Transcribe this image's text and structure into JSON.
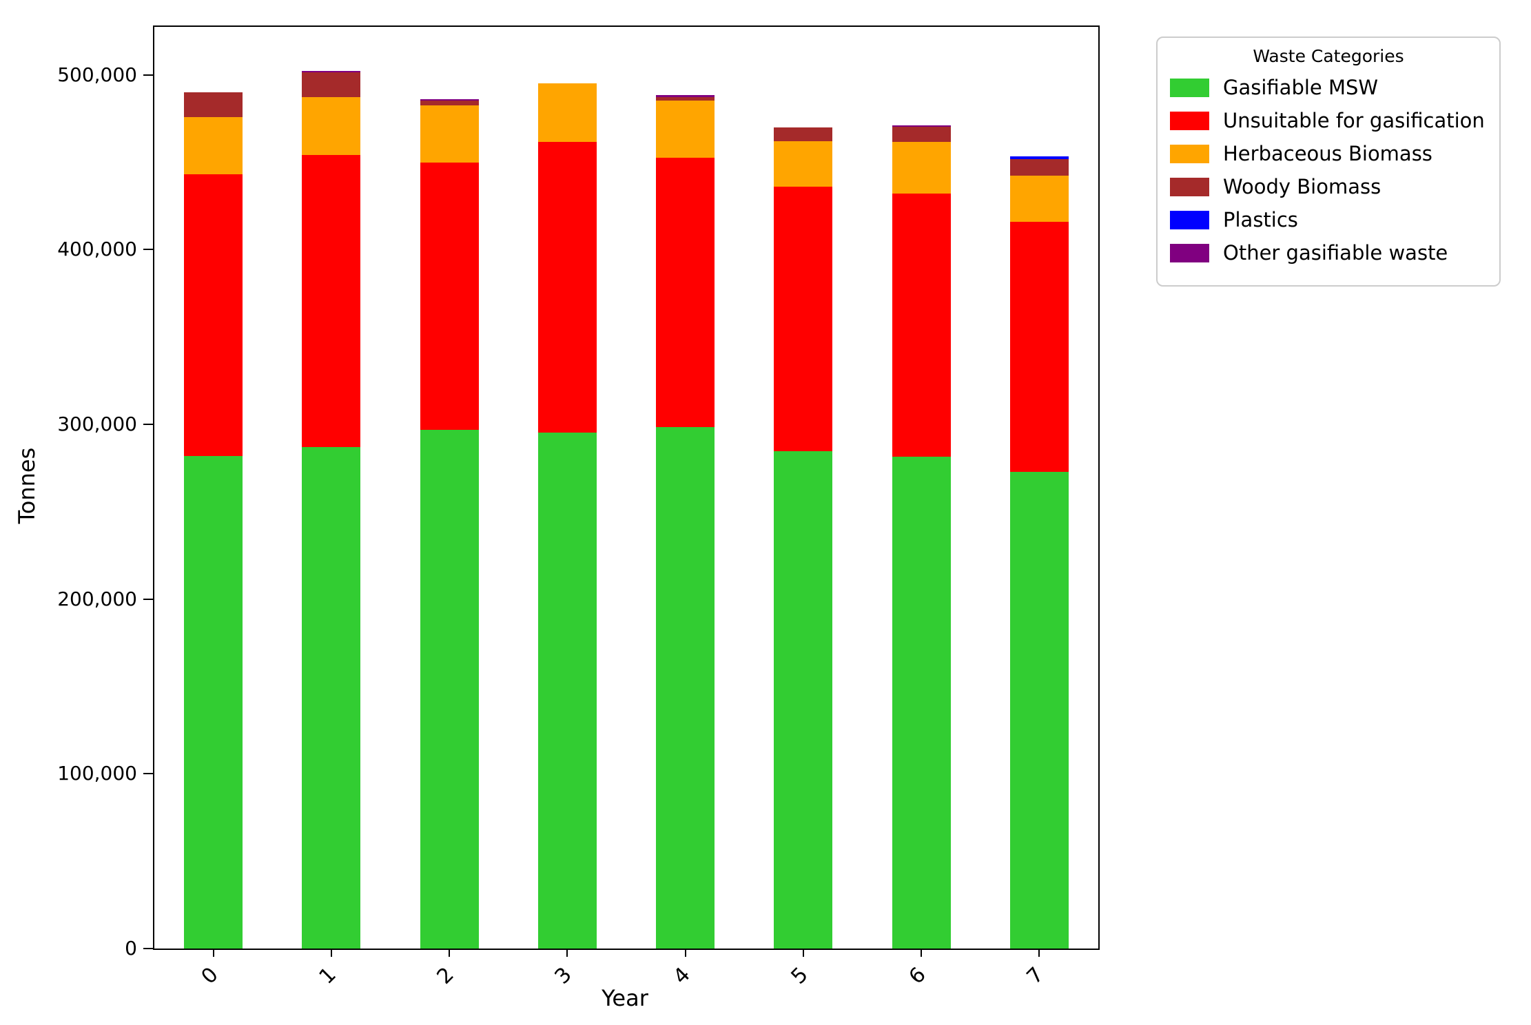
{
  "chart_data": {
    "type": "bar",
    "stacked": true,
    "xlabel": "Year",
    "ylabel": "Tonnes",
    "legend_title": "Waste Categories",
    "legend_position": "upper right, outside plot",
    "grid": false,
    "categories": [
      "0",
      "1",
      "2",
      "3",
      "4",
      "5",
      "6",
      "7"
    ],
    "series": [
      {
        "name": "Gasifiable MSW",
        "color": "#32CD32",
        "values": [
          282000,
          287000,
          297000,
          295500,
          298500,
          284500,
          281500,
          273000
        ]
      },
      {
        "name": "Unsuitable for gasification",
        "color": "#FF0000",
        "values": [
          161000,
          167000,
          153000,
          166000,
          154000,
          151500,
          150500,
          143000
        ]
      },
      {
        "name": "Herbaceous Biomass",
        "color": "#FFA500",
        "values": [
          33000,
          33500,
          32500,
          33500,
          33000,
          26000,
          29500,
          26500
        ]
      },
      {
        "name": "Woody Biomass",
        "color": "#A52A2A",
        "values": [
          14000,
          14000,
          3000,
          0,
          2000,
          8000,
          9000,
          9500
        ]
      },
      {
        "name": "Plastics",
        "color": "#0000FF",
        "values": [
          0,
          0,
          0,
          0,
          0,
          0,
          0,
          1300
        ]
      },
      {
        "name": "Other gasifiable waste",
        "color": "#800080",
        "values": [
          0,
          800,
          800,
          0,
          1000,
          0,
          700,
          0
        ]
      }
    ],
    "totals": [
      490000,
      502300,
      486300,
      495000,
      488500,
      470000,
      471200,
      453300
    ],
    "ylim": [
      0,
      527500
    ],
    "yticks": [
      0,
      100000,
      200000,
      300000,
      400000,
      500000
    ],
    "ytick_labels": [
      "0",
      "100,000",
      "200,000",
      "300,000",
      "400,000",
      "500,000"
    ]
  }
}
